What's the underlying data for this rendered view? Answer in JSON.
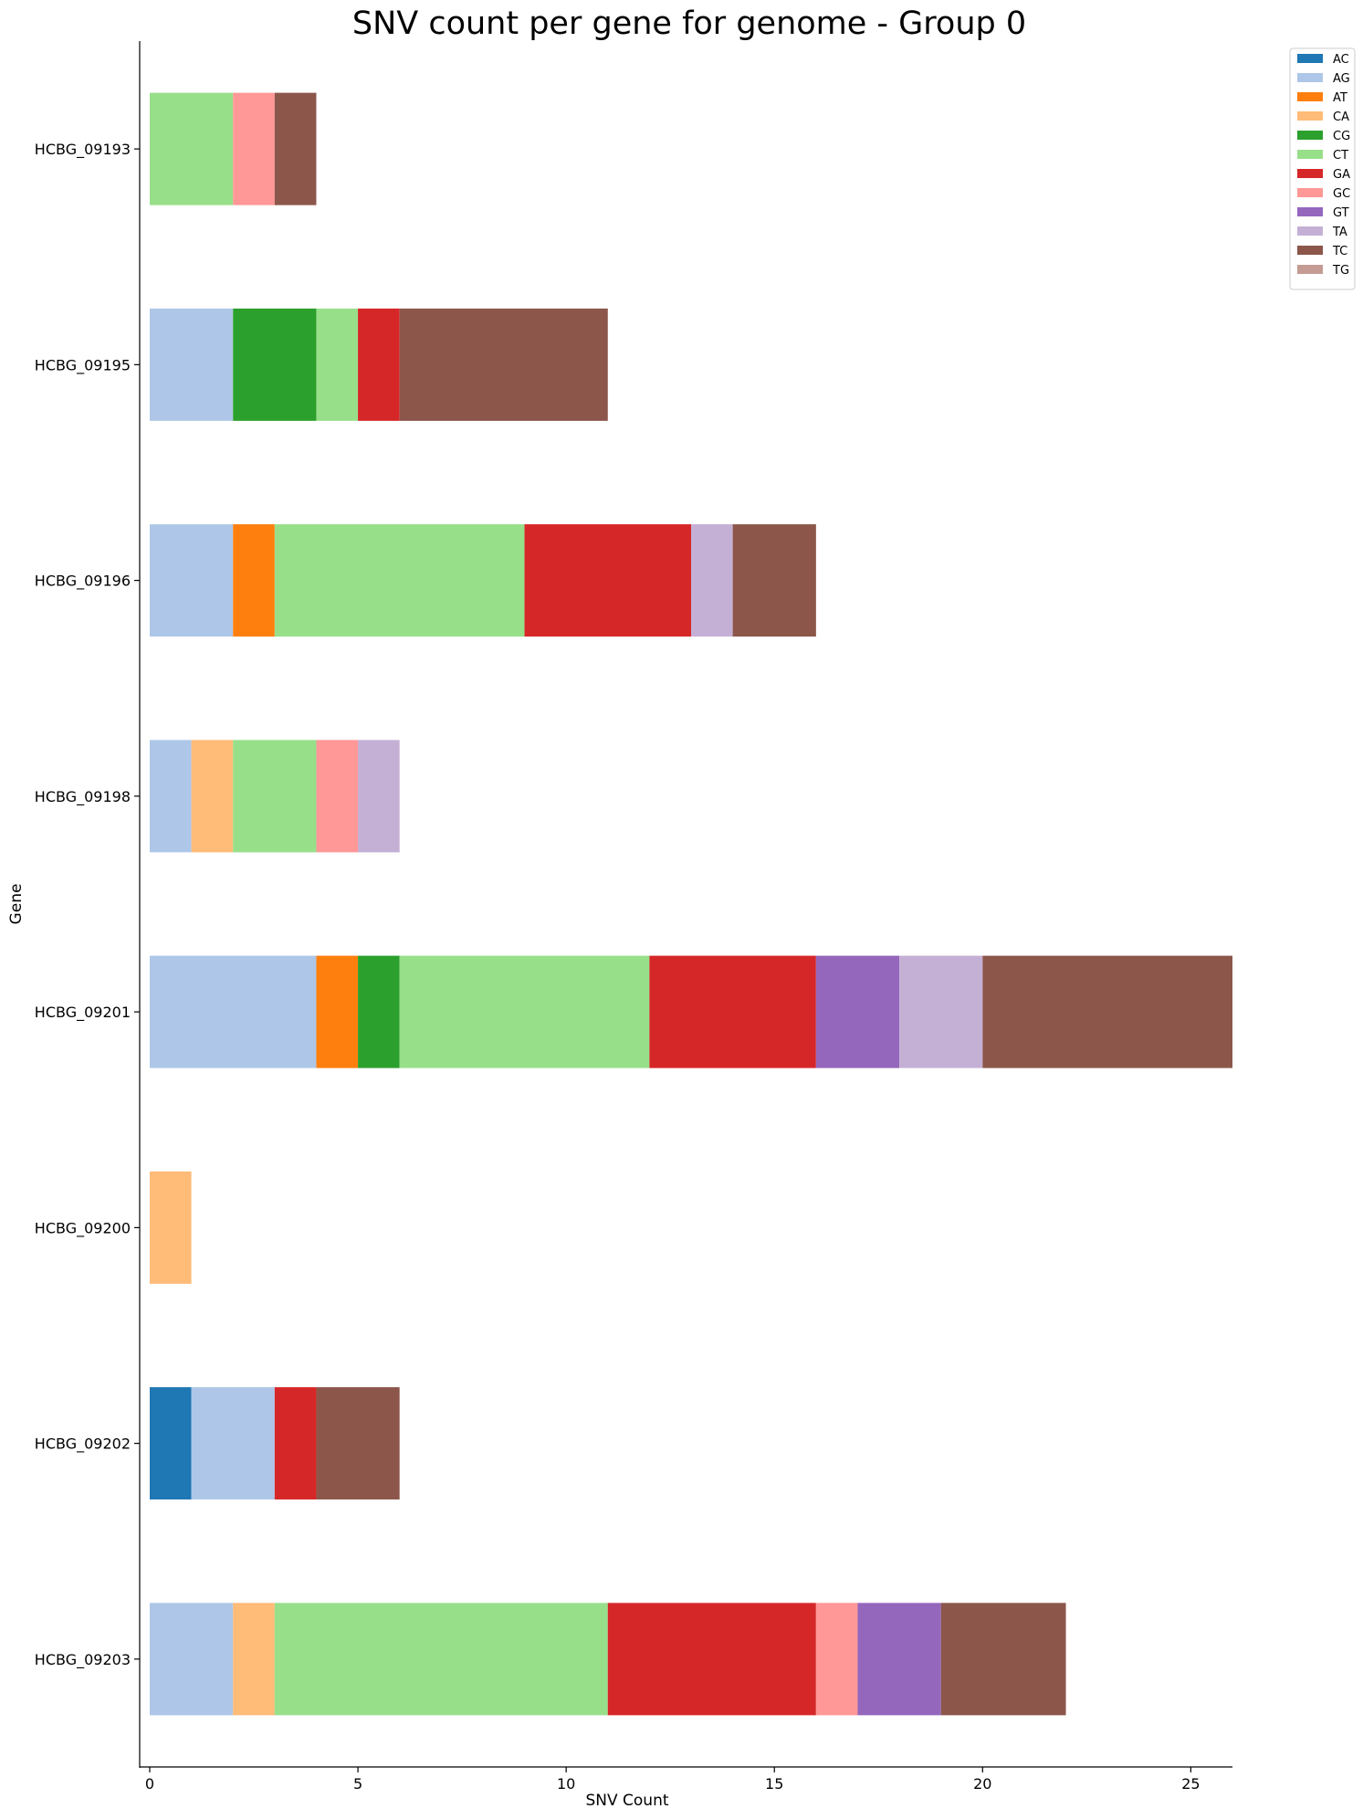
{
  "chart_data": {
    "type": "bar",
    "orientation": "horizontal",
    "stacked": true,
    "title": "SNV count per gene for genome - Group 0",
    "xlabel": "SNV Count",
    "ylabel": "Gene",
    "xlim": [
      0,
      26
    ],
    "xticks": [
      0,
      5,
      10,
      15,
      20,
      25
    ],
    "grid": false,
    "legend_position": "top-right outside",
    "categories": [
      "HCBG_09193",
      "HCBG_09195",
      "HCBG_09196",
      "HCBG_09198",
      "HCBG_09201",
      "HCBG_09200",
      "HCBG_09202",
      "HCBG_09203"
    ],
    "series": [
      {
        "name": "AC",
        "color": "#1f77b4",
        "values": [
          0,
          0,
          0,
          0,
          0,
          0,
          1,
          0
        ]
      },
      {
        "name": "AG",
        "color": "#aec7e8",
        "values": [
          0,
          2,
          2,
          1,
          4,
          0,
          2,
          2
        ]
      },
      {
        "name": "AT",
        "color": "#ff7f0e",
        "values": [
          0,
          0,
          1,
          0,
          1,
          0,
          0,
          0
        ]
      },
      {
        "name": "CA",
        "color": "#ffbb78",
        "values": [
          0,
          0,
          0,
          1,
          0,
          1,
          0,
          1
        ]
      },
      {
        "name": "CG",
        "color": "#2ca02c",
        "values": [
          0,
          2,
          0,
          0,
          1,
          0,
          0,
          0
        ]
      },
      {
        "name": "CT",
        "color": "#98df8a",
        "values": [
          2,
          1,
          6,
          2,
          6,
          0,
          0,
          8
        ]
      },
      {
        "name": "GA",
        "color": "#d62728",
        "values": [
          0,
          1,
          4,
          0,
          4,
          0,
          1,
          5
        ]
      },
      {
        "name": "GC",
        "color": "#ff9896",
        "values": [
          1,
          0,
          0,
          1,
          0,
          0,
          0,
          1
        ]
      },
      {
        "name": "GT",
        "color": "#9467bd",
        "values": [
          0,
          0,
          0,
          0,
          2,
          0,
          0,
          2
        ]
      },
      {
        "name": "TA",
        "color": "#c5b0d5",
        "values": [
          0,
          0,
          1,
          1,
          2,
          0,
          0,
          0
        ]
      },
      {
        "name": "TC",
        "color": "#8c564b",
        "values": [
          1,
          5,
          2,
          0,
          6,
          0,
          2,
          3
        ]
      },
      {
        "name": "TG",
        "color": "#c49c94",
        "values": [
          0,
          0,
          0,
          0,
          0,
          0,
          0,
          0
        ]
      }
    ]
  }
}
